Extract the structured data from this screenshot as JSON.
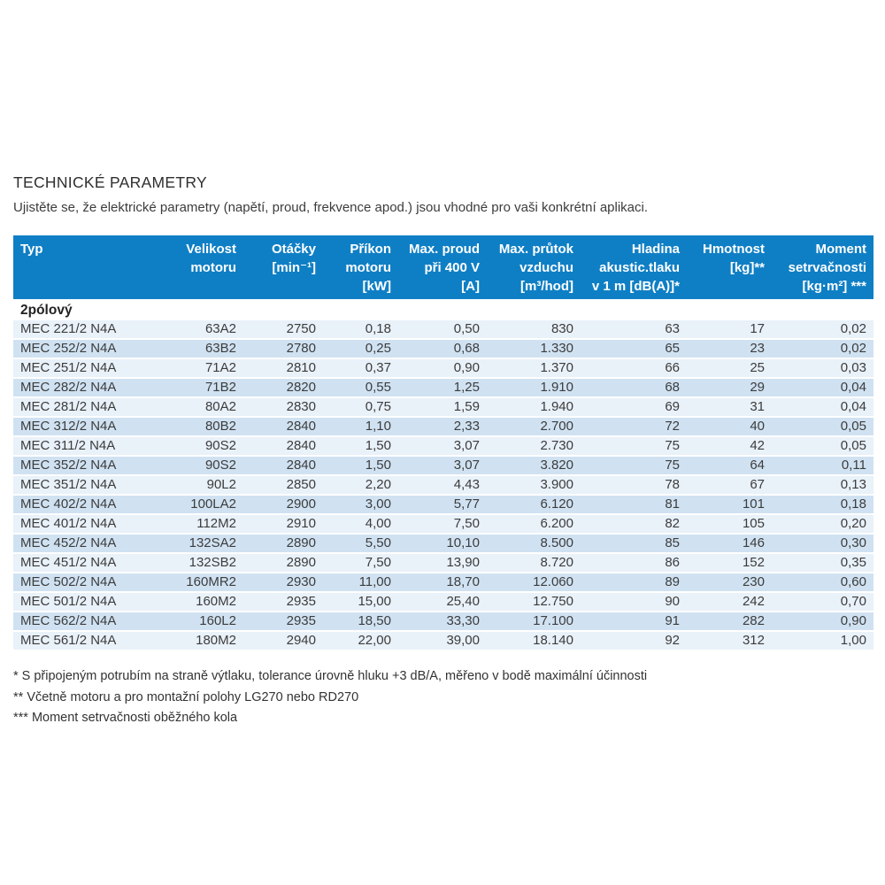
{
  "page": {
    "title": "TECHNICKÉ PARAMETRY",
    "subtitle": "Ujistěte se, že elektrické parametry (napětí, proud, frekvence apod.) jsou vhodné pro vaši konkrétní aplikaci."
  },
  "table": {
    "headers": [
      "Typ",
      "Velikost\nmotoru",
      "Otáčky\n[min⁻¹]",
      "Příkon\nmotoru\n[kW]",
      "Max. proud\npři 400 V\n[A]",
      "Max. průtok\nvzduchu\n[m³/hod]",
      "Hladina\nakustic.tlaku\nv 1 m [dB(A)]*",
      "Hmotnost\n[kg]**",
      "Moment\nsetrvačnosti\n[kg·m²] ***"
    ],
    "section_label": "2pólový",
    "rows": [
      [
        "MEC 221/2 N4A",
        "63A2",
        "2750",
        "0,18",
        "0,50",
        "830",
        "63",
        "17",
        "0,02"
      ],
      [
        "MEC 252/2 N4A",
        "63B2",
        "2780",
        "0,25",
        "0,68",
        "1.330",
        "65",
        "23",
        "0,02"
      ],
      [
        "MEC 251/2 N4A",
        "71A2",
        "2810",
        "0,37",
        "0,90",
        "1.370",
        "66",
        "25",
        "0,03"
      ],
      [
        "MEC 282/2 N4A",
        "71B2",
        "2820",
        "0,55",
        "1,25",
        "1.910",
        "68",
        "29",
        "0,04"
      ],
      [
        "MEC 281/2 N4A",
        "80A2",
        "2830",
        "0,75",
        "1,59",
        "1.940",
        "69",
        "31",
        "0,04"
      ],
      [
        "MEC 312/2 N4A",
        "80B2",
        "2840",
        "1,10",
        "2,33",
        "2.700",
        "72",
        "40",
        "0,05"
      ],
      [
        "MEC 311/2 N4A",
        "90S2",
        "2840",
        "1,50",
        "3,07",
        "2.730",
        "75",
        "42",
        "0,05"
      ],
      [
        "MEC 352/2 N4A",
        "90S2",
        "2840",
        "1,50",
        "3,07",
        "3.820",
        "75",
        "64",
        "0,11"
      ],
      [
        "MEC 351/2 N4A",
        "90L2",
        "2850",
        "2,20",
        "4,43",
        "3.900",
        "78",
        "67",
        "0,13"
      ],
      [
        "MEC 402/2 N4A",
        "100LA2",
        "2900",
        "3,00",
        "5,77",
        "6.120",
        "81",
        "101",
        "0,18"
      ],
      [
        "MEC 401/2 N4A",
        "112M2",
        "2910",
        "4,00",
        "7,50",
        "6.200",
        "82",
        "105",
        "0,20"
      ],
      [
        "MEC 452/2 N4A",
        "132SA2",
        "2890",
        "5,50",
        "10,10",
        "8.500",
        "85",
        "146",
        "0,30"
      ],
      [
        "MEC 451/2 N4A",
        "132SB2",
        "2890",
        "7,50",
        "13,90",
        "8.720",
        "86",
        "152",
        "0,35"
      ],
      [
        "MEC 502/2 N4A",
        "160MR2",
        "2930",
        "11,00",
        "18,70",
        "12.060",
        "89",
        "230",
        "0,60"
      ],
      [
        "MEC 501/2 N4A",
        "160M2",
        "2935",
        "15,00",
        "25,40",
        "12.750",
        "90",
        "242",
        "0,70"
      ],
      [
        "MEC 562/2 N4A",
        "160L2",
        "2935",
        "18,50",
        "33,30",
        "17.100",
        "91",
        "282",
        "0,90"
      ],
      [
        "MEC 561/2 N4A",
        "180M2",
        "2940",
        "22,00",
        "39,00",
        "18.140",
        "92",
        "312",
        "1,00"
      ]
    ]
  },
  "footnotes": [
    "* S připojeným potrubím na straně výtlaku, tolerance úrovně hluku +3 dB/A, měřeno v bodě maximální účinnosti",
    "** Včetně motoru a pro montažní polohy LG270 nebo RD270",
    "*** Moment setrvačnosti oběžného kola"
  ],
  "colors": {
    "header_bg": "#0f7fc5",
    "row_light": "#e9f1f9",
    "row_dark": "#d0e2f2",
    "text": "#3c3c3c"
  }
}
